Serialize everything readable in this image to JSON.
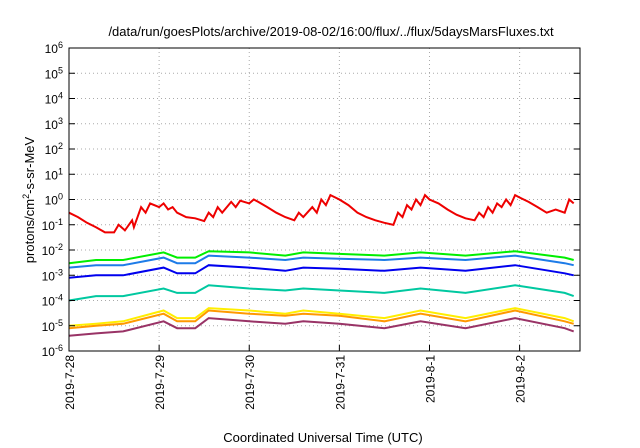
{
  "chart_data": {
    "type": "line",
    "title": "/data/run/goesPlots/archive/2019-08-02/16:00/flux/../flux/5daysMarsFluxes.txt",
    "xlabel": "Coordinated Universal Time (UTC)",
    "ylabel_base": "protons/cm",
    "ylabel_sup": "2",
    "ylabel_rest": "-s-sr-MeV",
    "y_scale": "log",
    "ylim": [
      1e-06,
      1000000.0
    ],
    "y_ticks": [
      {
        "base": "10",
        "exp": "-6",
        "value": -6
      },
      {
        "base": "10",
        "exp": "-5",
        "value": -5
      },
      {
        "base": "10",
        "exp": "-4",
        "value": -4
      },
      {
        "base": "10",
        "exp": "-3",
        "value": -3
      },
      {
        "base": "10",
        "exp": "-2",
        "value": -2
      },
      {
        "base": "10",
        "exp": "-1",
        "value": -1
      },
      {
        "base": "10",
        "exp": "0",
        "value": 0
      },
      {
        "base": "10",
        "exp": "1",
        "value": 1
      },
      {
        "base": "10",
        "exp": "2",
        "value": 2
      },
      {
        "base": "10",
        "exp": "3",
        "value": 3
      },
      {
        "base": "10",
        "exp": "4",
        "value": 4
      },
      {
        "base": "10",
        "exp": "5",
        "value": 5
      },
      {
        "base": "10",
        "exp": "6",
        "value": 6
      }
    ],
    "x_range_days": [
      "2019-07-28",
      "2019-08-02 16:00"
    ],
    "x_ticks": [
      "2019-7-28",
      "2019-7-29",
      "2019-7-30",
      "2019-7-31",
      "2019-8-1",
      "2019-8-2"
    ],
    "grid": true,
    "series_colors": [
      "#ee0000",
      "#00ee00",
      "#1e7ce8",
      "#0000ee",
      "#00c8a0",
      "#ffee00",
      "#ff9900",
      "#993366"
    ],
    "series": [
      {
        "color": "#ee0000",
        "values": [
          [
            0.0,
            0.3
          ],
          [
            0.1,
            0.2
          ],
          [
            0.2,
            0.12
          ],
          [
            0.3,
            0.08
          ],
          [
            0.4,
            0.05
          ],
          [
            0.5,
            0.05
          ],
          [
            0.55,
            0.1
          ],
          [
            0.6,
            0.07
          ],
          [
            0.62,
            0.06
          ],
          [
            0.7,
            0.15
          ],
          [
            0.72,
            0.08
          ],
          [
            0.8,
            0.5
          ],
          [
            0.85,
            0.3
          ],
          [
            0.9,
            0.7
          ],
          [
            1.0,
            0.5
          ],
          [
            1.05,
            0.7
          ],
          [
            1.1,
            0.4
          ],
          [
            1.15,
            0.5
          ],
          [
            1.2,
            0.3
          ],
          [
            1.3,
            0.2
          ],
          [
            1.4,
            0.18
          ],
          [
            1.5,
            0.14
          ],
          [
            1.55,
            0.3
          ],
          [
            1.6,
            0.2
          ],
          [
            1.65,
            0.5
          ],
          [
            1.7,
            0.3
          ],
          [
            1.8,
            0.8
          ],
          [
            1.85,
            0.5
          ],
          [
            1.9,
            0.9
          ],
          [
            2.0,
            0.7
          ],
          [
            2.05,
            1.0
          ],
          [
            2.1,
            0.8
          ],
          [
            2.2,
            0.5
          ],
          [
            2.3,
            0.3
          ],
          [
            2.4,
            0.2
          ],
          [
            2.5,
            0.15
          ],
          [
            2.55,
            0.3
          ],
          [
            2.6,
            0.2
          ],
          [
            2.7,
            0.5
          ],
          [
            2.75,
            0.3
          ],
          [
            2.8,
            1.0
          ],
          [
            2.85,
            0.6
          ],
          [
            2.9,
            1.5
          ],
          [
            3.0,
            1.0
          ],
          [
            3.1,
            0.6
          ],
          [
            3.2,
            0.3
          ],
          [
            3.3,
            0.2
          ],
          [
            3.4,
            0.15
          ],
          [
            3.5,
            0.12
          ],
          [
            3.6,
            0.1
          ],
          [
            3.65,
            0.3
          ],
          [
            3.7,
            0.2
          ],
          [
            3.75,
            0.6
          ],
          [
            3.8,
            0.4
          ],
          [
            3.85,
            1.0
          ],
          [
            3.9,
            0.6
          ],
          [
            3.95,
            1.5
          ],
          [
            4.0,
            1.0
          ],
          [
            4.1,
            0.7
          ],
          [
            4.2,
            0.4
          ],
          [
            4.3,
            0.25
          ],
          [
            4.4,
            0.18
          ],
          [
            4.5,
            0.15
          ],
          [
            4.55,
            0.3
          ],
          [
            4.6,
            0.2
          ],
          [
            4.65,
            0.5
          ],
          [
            4.7,
            0.3
          ],
          [
            4.75,
            0.7
          ],
          [
            4.8,
            0.5
          ],
          [
            4.85,
            1.0
          ],
          [
            4.9,
            0.6
          ],
          [
            4.95,
            1.5
          ],
          [
            5.0,
            1.2
          ],
          [
            5.1,
            0.8
          ],
          [
            5.2,
            0.5
          ],
          [
            5.3,
            0.3
          ],
          [
            5.4,
            0.4
          ],
          [
            5.5,
            0.3
          ],
          [
            5.55,
            1.0
          ],
          [
            5.6,
            0.7
          ]
        ]
      },
      {
        "color": "#00ee00",
        "values": [
          [
            0.0,
            0.003
          ],
          [
            0.3,
            0.004
          ],
          [
            0.6,
            0.004
          ],
          [
            1.05,
            0.008
          ],
          [
            1.2,
            0.005
          ],
          [
            1.4,
            0.005
          ],
          [
            1.55,
            0.009
          ],
          [
            2.0,
            0.008
          ],
          [
            2.4,
            0.006
          ],
          [
            2.6,
            0.008
          ],
          [
            3.0,
            0.007
          ],
          [
            3.5,
            0.006
          ],
          [
            3.9,
            0.008
          ],
          [
            4.4,
            0.006
          ],
          [
            4.95,
            0.009
          ],
          [
            5.5,
            0.005
          ],
          [
            5.6,
            0.004
          ]
        ]
      },
      {
        "color": "#1e7ce8",
        "values": [
          [
            0.0,
            0.002
          ],
          [
            0.3,
            0.0025
          ],
          [
            0.6,
            0.0025
          ],
          [
            1.05,
            0.005
          ],
          [
            1.2,
            0.003
          ],
          [
            1.4,
            0.003
          ],
          [
            1.55,
            0.006
          ],
          [
            2.0,
            0.005
          ],
          [
            2.4,
            0.004
          ],
          [
            2.6,
            0.005
          ],
          [
            3.0,
            0.0045
          ],
          [
            3.5,
            0.004
          ],
          [
            3.9,
            0.005
          ],
          [
            4.4,
            0.004
          ],
          [
            4.95,
            0.006
          ],
          [
            5.5,
            0.003
          ],
          [
            5.6,
            0.0025
          ]
        ]
      },
      {
        "color": "#0000ee",
        "values": [
          [
            0.0,
            0.0008
          ],
          [
            0.3,
            0.001
          ],
          [
            0.6,
            0.001
          ],
          [
            1.05,
            0.002
          ],
          [
            1.2,
            0.0012
          ],
          [
            1.4,
            0.0012
          ],
          [
            1.55,
            0.0025
          ],
          [
            2.0,
            0.002
          ],
          [
            2.4,
            0.0015
          ],
          [
            2.6,
            0.002
          ],
          [
            3.0,
            0.0018
          ],
          [
            3.5,
            0.0015
          ],
          [
            3.9,
            0.002
          ],
          [
            4.4,
            0.0015
          ],
          [
            4.95,
            0.0025
          ],
          [
            5.5,
            0.0012
          ],
          [
            5.6,
            0.001
          ]
        ]
      },
      {
        "color": "#00c8a0",
        "values": [
          [
            0.0,
            0.0001
          ],
          [
            0.3,
            0.00015
          ],
          [
            0.6,
            0.00015
          ],
          [
            1.05,
            0.0003
          ],
          [
            1.2,
            0.0002
          ],
          [
            1.4,
            0.0002
          ],
          [
            1.55,
            0.0004
          ],
          [
            2.0,
            0.0003
          ],
          [
            2.4,
            0.00025
          ],
          [
            2.6,
            0.0003
          ],
          [
            3.0,
            0.00025
          ],
          [
            3.5,
            0.0002
          ],
          [
            3.9,
            0.0003
          ],
          [
            4.4,
            0.0002
          ],
          [
            4.95,
            0.0004
          ],
          [
            5.5,
            0.0002
          ],
          [
            5.6,
            0.00015
          ]
        ]
      },
      {
        "color": "#ffee00",
        "values": [
          [
            0.0,
            1e-05
          ],
          [
            0.3,
            1.2e-05
          ],
          [
            0.6,
            1.5e-05
          ],
          [
            1.05,
            4e-05
          ],
          [
            1.2,
            2e-05
          ],
          [
            1.4,
            2e-05
          ],
          [
            1.55,
            5e-05
          ],
          [
            2.0,
            4e-05
          ],
          [
            2.4,
            3e-05
          ],
          [
            2.6,
            4e-05
          ],
          [
            3.0,
            3e-05
          ],
          [
            3.5,
            2e-05
          ],
          [
            3.9,
            4e-05
          ],
          [
            4.4,
            2e-05
          ],
          [
            4.95,
            5e-05
          ],
          [
            5.5,
            2e-05
          ],
          [
            5.6,
            1.5e-05
          ]
        ]
      },
      {
        "color": "#ff9900",
        "values": [
          [
            0.0,
            8e-06
          ],
          [
            0.3,
            1e-05
          ],
          [
            0.6,
            1.2e-05
          ],
          [
            1.05,
            3e-05
          ],
          [
            1.2,
            1.5e-05
          ],
          [
            1.4,
            1.5e-05
          ],
          [
            1.55,
            4e-05
          ],
          [
            2.0,
            3e-05
          ],
          [
            2.4,
            2.5e-05
          ],
          [
            2.6,
            3e-05
          ],
          [
            3.0,
            2.5e-05
          ],
          [
            3.5,
            1.5e-05
          ],
          [
            3.9,
            3e-05
          ],
          [
            4.4,
            1.5e-05
          ],
          [
            4.95,
            4e-05
          ],
          [
            5.5,
            1.5e-05
          ],
          [
            5.6,
            1.2e-05
          ]
        ]
      },
      {
        "color": "#993366",
        "values": [
          [
            0.0,
            4e-06
          ],
          [
            0.3,
            5e-06
          ],
          [
            0.6,
            6e-06
          ],
          [
            1.05,
            1.5e-05
          ],
          [
            1.2,
            8e-06
          ],
          [
            1.4,
            8e-06
          ],
          [
            1.55,
            2e-05
          ],
          [
            2.0,
            1.5e-05
          ],
          [
            2.4,
            1.2e-05
          ],
          [
            2.6,
            1.5e-05
          ],
          [
            3.0,
            1.2e-05
          ],
          [
            3.5,
            8e-06
          ],
          [
            3.9,
            1.5e-05
          ],
          [
            4.4,
            8e-06
          ],
          [
            4.95,
            2e-05
          ],
          [
            5.5,
            8e-06
          ],
          [
            5.6,
            6e-06
          ]
        ]
      }
    ]
  }
}
